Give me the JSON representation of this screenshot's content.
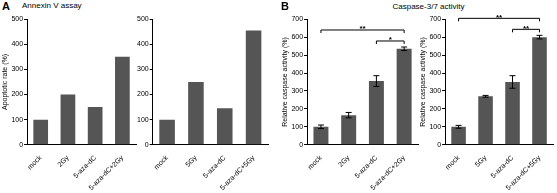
{
  "chart_data": [
    {
      "type": "bar",
      "title": "Annexin V assay",
      "annotations": [
        "A"
      ],
      "ylabel": "Apoptotic rate (%)",
      "categories": [
        "mock",
        "2Gy",
        "5-aza-dC",
        "5-aza-dC+2Gy"
      ],
      "values": [
        100,
        200,
        150,
        350
      ],
      "color": "#555555",
      "ylim": [
        0,
        500
      ],
      "yticks": [
        0,
        100,
        200,
        300,
        400,
        500
      ],
      "grid": false
    },
    {
      "type": "bar",
      "categories": [
        "mock",
        "5Gy",
        "5-aza-dC",
        "5-aza-dC+5Gy"
      ],
      "values": [
        100,
        250,
        145,
        455
      ],
      "color": "#555555",
      "ylim": [
        0,
        500
      ],
      "yticks": [
        0,
        100,
        200,
        300,
        400,
        500
      ],
      "grid": false
    },
    {
      "type": "bar",
      "title": "Caspase-3/7 activity",
      "annotations": [
        "B"
      ],
      "ylabel": "Relative caspase activity (%)",
      "categories": [
        "mock",
        "2Gy",
        "5-aza-dC",
        "5-aza-dC+2Gy"
      ],
      "values": [
        100,
        165,
        355,
        535
      ],
      "errors": [
        10,
        15,
        30,
        10
      ],
      "color": "#555555",
      "ylim": [
        0,
        700
      ],
      "yticks": [
        0,
        100,
        200,
        300,
        400,
        500,
        600,
        700
      ],
      "grid": false,
      "significance": [
        {
          "from": "mock",
          "to": "5-aza-dC+2Gy",
          "label": "**"
        },
        {
          "from": "5-aza-dC",
          "to": "5-aza-dC+2Gy",
          "label": "*"
        }
      ]
    },
    {
      "type": "bar",
      "ylabel": "Relative caspase activity (%)",
      "categories": [
        "mock",
        "5Gy",
        "5-aza-dC",
        "5-aza-dC+5Gy"
      ],
      "values": [
        100,
        270,
        350,
        600
      ],
      "errors": [
        8,
        5,
        35,
        10
      ],
      "color": "#555555",
      "ylim": [
        0,
        700
      ],
      "yticks": [
        0,
        100,
        200,
        300,
        400,
        500,
        600,
        700
      ],
      "grid": false,
      "significance": [
        {
          "from": "mock",
          "to": "5-aza-dC+5Gy",
          "label": "**"
        },
        {
          "from": "5-aza-dC",
          "to": "5-aza-dC+5Gy",
          "label": "**"
        }
      ]
    }
  ]
}
